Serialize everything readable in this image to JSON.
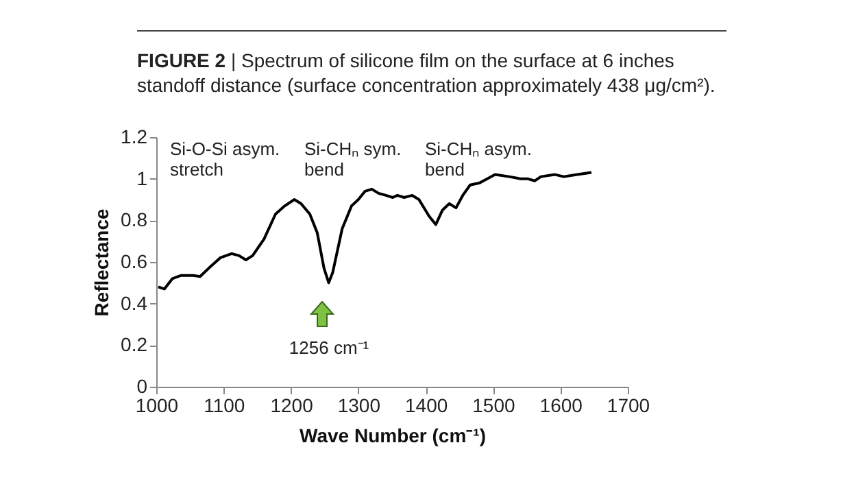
{
  "chart_data": {
    "type": "line",
    "title": "FIGURE 2 | Spectrum of silicone film on the surface at 6 inches standoff distance (surface concentration approximately 438 μg/cm²).",
    "xlabel": "Wave Number (cm⁻¹)",
    "ylabel": "Reflectance",
    "x": [
      1003,
      1012,
      1024,
      1037,
      1055,
      1065,
      1078,
      1095,
      1112,
      1123,
      1133,
      1143,
      1160,
      1177,
      1191,
      1205,
      1215,
      1228,
      1239,
      1249,
      1256,
      1262,
      1276,
      1290,
      1300,
      1310,
      1320,
      1330,
      1341,
      1351,
      1358,
      1368,
      1380,
      1390,
      1405,
      1415,
      1425,
      1435,
      1445,
      1455,
      1466,
      1480,
      1503,
      1524,
      1541,
      1551,
      1562,
      1571,
      1592,
      1605,
      1625,
      1646
    ],
    "series": [
      {
        "color": "#000000",
        "values": [
          0.48,
          0.47,
          0.52,
          0.535,
          0.535,
          0.53,
          0.57,
          0.62,
          0.64,
          0.63,
          0.61,
          0.63,
          0.71,
          0.83,
          0.87,
          0.9,
          0.88,
          0.83,
          0.74,
          0.57,
          0.5,
          0.55,
          0.76,
          0.87,
          0.9,
          0.94,
          0.95,
          0.93,
          0.92,
          0.91,
          0.92,
          0.91,
          0.92,
          0.9,
          0.82,
          0.78,
          0.85,
          0.88,
          0.86,
          0.92,
          0.97,
          0.98,
          1.02,
          1.01,
          1.0,
          1.0,
          0.99,
          1.01,
          1.02,
          1.01,
          1.02,
          1.03
        ]
      }
    ],
    "xlim": [
      1000,
      1700
    ],
    "xticks": [
      1000,
      1100,
      1200,
      1300,
      1400,
      1500,
      1600,
      1700
    ],
    "ylim": [
      0,
      1.2
    ],
    "yticks": [
      0,
      0.2,
      0.4,
      0.6,
      0.8,
      1,
      1.2
    ],
    "grid": false,
    "marker": "none",
    "line_style": "solid",
    "annotations": [
      "Si-O-Si asym.\nstretch",
      "Si-CHₙ sym.\nbend",
      "Si-CHₙ asym.\nbend",
      "1256 cm⁻¹"
    ]
  }
}
